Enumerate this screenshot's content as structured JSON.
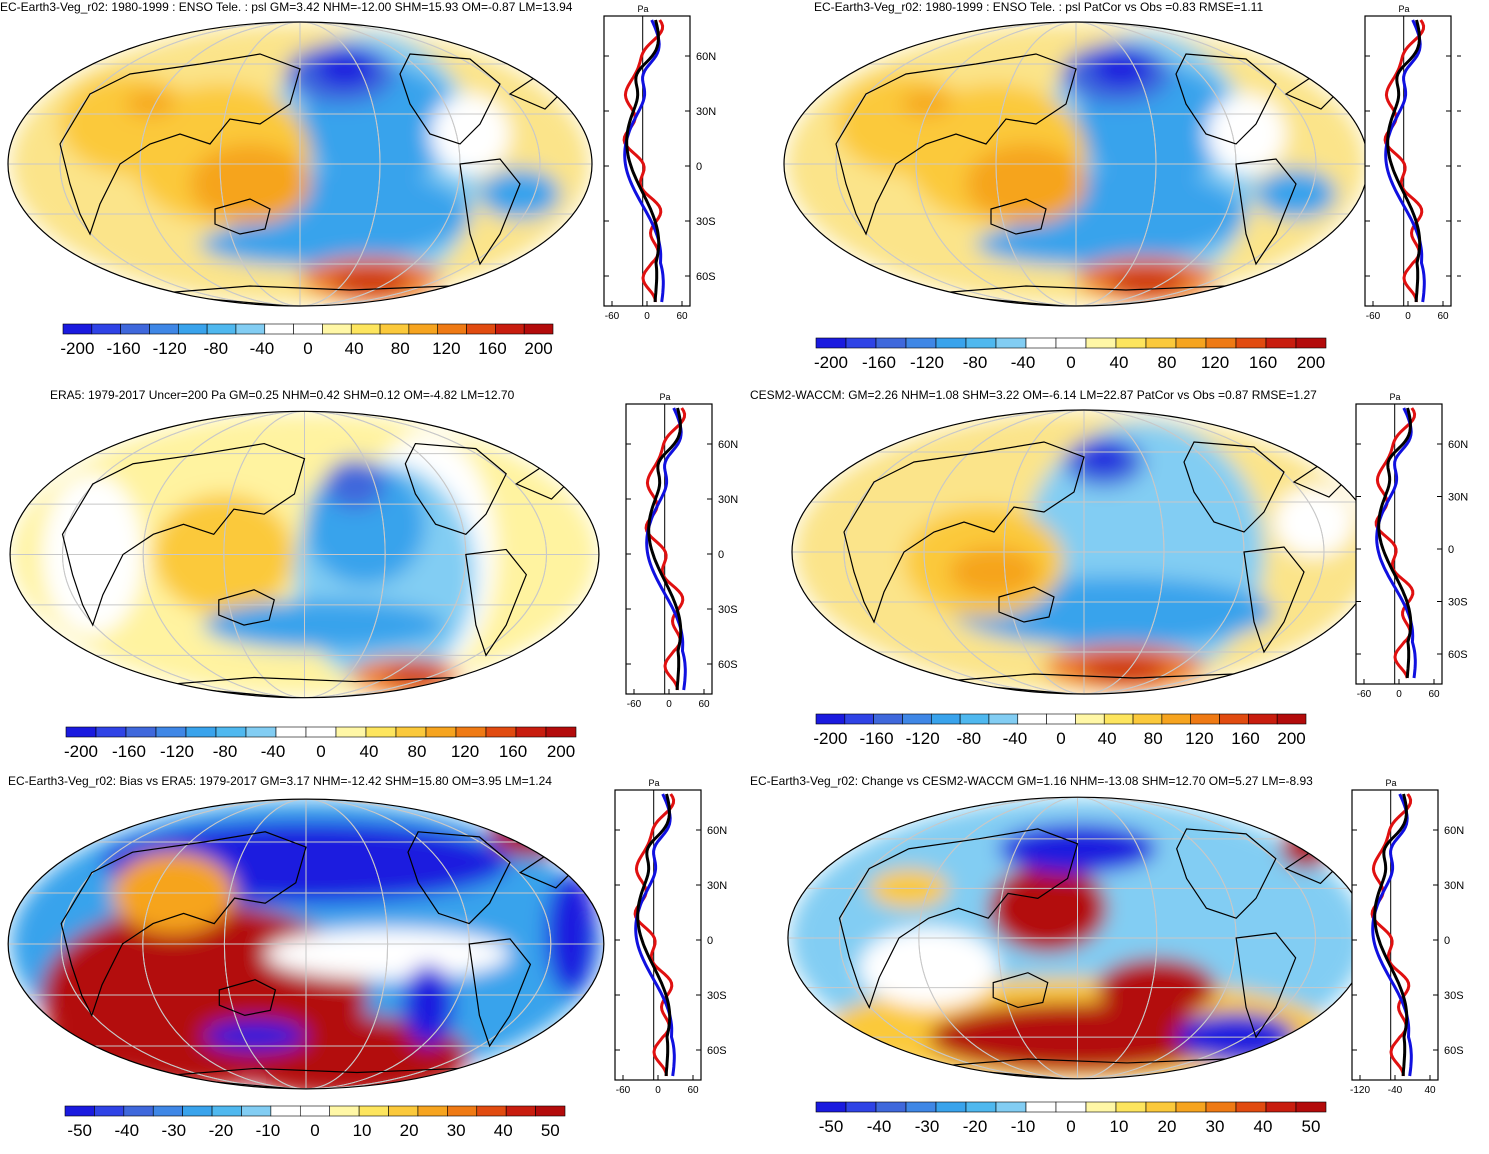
{
  "palette": [
    "#1a1adf",
    "#2f43e6",
    "#3f68dc",
    "#3f87e6",
    "#39a3ec",
    "#4fb8ef",
    "#82cdf3",
    "#ffffff",
    "#ffffff",
    "#fff7a6",
    "#fde55e",
    "#fbc93b",
    "#f6a41f",
    "#ef7a14",
    "#e14b10",
    "#c81d0e",
    "#b30b0b"
  ],
  "series_colors": {
    "model": "#e01010",
    "obs": "#1010e0",
    "mean": "#000000"
  },
  "panels": [
    {
      "id": "p1",
      "title": "EC-Earth3-Veg_r02: 1980-1999 : ENSO Tele. : psl GM=3.42 NHM=-12.00 SHM=15.93 OM=-0.87 LM=13.94",
      "colorbar_labels": [
        "-200",
        "-160",
        "-120",
        "-80",
        "-40",
        "0",
        "40",
        "80",
        "120",
        "160",
        "200"
      ],
      "zonal_unit": "Pa",
      "zonal_xticks": [
        "-60",
        "0",
        "60"
      ],
      "zonal_lat_labels": [
        "60N",
        "30N",
        "0",
        "30S",
        "60S"
      ],
      "chart_data": {
        "type": "heatmap",
        "field": "psl ENSO teleconnection",
        "units": "Pa",
        "stats": {
          "GM": 3.42,
          "NHM": -12.0,
          "SHM": 15.93,
          "OM": -0.87,
          "LM": 13.94
        },
        "colorbar_range": [
          -200,
          200
        ]
      }
    },
    {
      "id": "p2",
      "title": "EC-Earth3-Veg_r02: 1980-1999 : ENSO Tele. : psl PatCor vs Obs =0.83 RMSE=1.11",
      "colorbar_labels": [
        "-200",
        "-160",
        "-120",
        "-80",
        "-40",
        "0",
        "40",
        "80",
        "120",
        "160",
        "200"
      ],
      "zonal_unit": "Pa",
      "zonal_xticks": [
        "-60",
        "0",
        "60"
      ],
      "zonal_lat_labels": [],
      "chart_data": {
        "type": "heatmap",
        "field": "psl ENSO teleconnection",
        "units": "Pa",
        "stats": {
          "PatCor": 0.83,
          "RMSE": 1.11
        },
        "colorbar_range": [
          -200,
          200
        ]
      }
    },
    {
      "id": "p3",
      "title": "ERA5: 1979-2017 Uncer=200 Pa GM=0.25 NHM=0.42 SHM=0.12 OM=-4.82 LM=12.70",
      "colorbar_labels": [
        "-200",
        "-160",
        "-120",
        "-80",
        "-40",
        "0",
        "40",
        "80",
        "120",
        "160",
        "200"
      ],
      "zonal_unit": "Pa",
      "zonal_xticks": [
        "-60",
        "0",
        "60"
      ],
      "zonal_lat_labels": [
        "60N",
        "30N",
        "0",
        "30S",
        "60S"
      ],
      "chart_data": {
        "type": "heatmap",
        "field": "psl ENSO teleconnection",
        "units": "Pa",
        "stats": {
          "Uncer": 200,
          "GM": 0.25,
          "NHM": 0.42,
          "SHM": 0.12,
          "OM": -4.82,
          "LM": 12.7
        },
        "colorbar_range": [
          -200,
          200
        ]
      }
    },
    {
      "id": "p4",
      "title": "CESM2-WACCM: GM=2.26 NHM=1.08 SHM=3.22 OM=-6.14 LM=22.87 PatCor vs Obs =0.87 RMSE=1.27",
      "colorbar_labels": [
        "-200",
        "-160",
        "-120",
        "-80",
        "-40",
        "0",
        "40",
        "80",
        "120",
        "160",
        "200"
      ],
      "zonal_unit": "Pa",
      "zonal_xticks": [
        "-60",
        "0",
        "60"
      ],
      "zonal_lat_labels": [
        "60N",
        "30N",
        "0",
        "30S",
        "60S"
      ],
      "chart_data": {
        "type": "heatmap",
        "field": "psl ENSO teleconnection",
        "units": "Pa",
        "stats": {
          "GM": 2.26,
          "NHM": 1.08,
          "SHM": 3.22,
          "OM": -6.14,
          "LM": 22.87,
          "PatCor": 0.87,
          "RMSE": 1.27
        },
        "colorbar_range": [
          -200,
          200
        ]
      }
    },
    {
      "id": "p5",
      "title": "EC-Earth3-Veg_r02: Bias vs ERA5: 1979-2017 GM=3.17 NHM=-12.42 SHM=15.80 OM=3.95 LM=1.24",
      "colorbar_labels": [
        "-50",
        "-40",
        "-30",
        "-20",
        "-10",
        "0",
        "10",
        "20",
        "30",
        "40",
        "50"
      ],
      "zonal_unit": "Pa",
      "zonal_xticks": [
        "-60",
        "0",
        "60"
      ],
      "zonal_lat_labels": [
        "60N",
        "30N",
        "0",
        "30S",
        "60S"
      ],
      "chart_data": {
        "type": "heatmap",
        "field": "psl bias vs ERA5",
        "units": "Pa",
        "stats": {
          "GM": 3.17,
          "NHM": -12.42,
          "SHM": 15.8,
          "OM": 3.95,
          "LM": 1.24
        },
        "colorbar_range": [
          -50,
          50
        ]
      }
    },
    {
      "id": "p6",
      "title": "EC-Earth3-Veg_r02: Change vs CESM2-WACCM GM=1.16 NHM=-13.08 SHM=12.70 OM=5.27 LM=-8.93",
      "colorbar_labels": [
        "-50",
        "-40",
        "-30",
        "-20",
        "-10",
        "0",
        "10",
        "20",
        "30",
        "40",
        "50"
      ],
      "zonal_unit": "Pa",
      "zonal_xticks": [
        "-120",
        "-40",
        "40"
      ],
      "zonal_lat_labels": [
        "60N",
        "30N",
        "0",
        "30S",
        "60S"
      ],
      "chart_data": {
        "type": "heatmap",
        "field": "psl change vs CESM2-WACCM",
        "units": "Pa",
        "stats": {
          "GM": 1.16,
          "NHM": -13.08,
          "SHM": 12.7,
          "OM": 5.27,
          "LM": -8.93
        },
        "colorbar_range": [
          -50,
          50
        ]
      }
    }
  ]
}
